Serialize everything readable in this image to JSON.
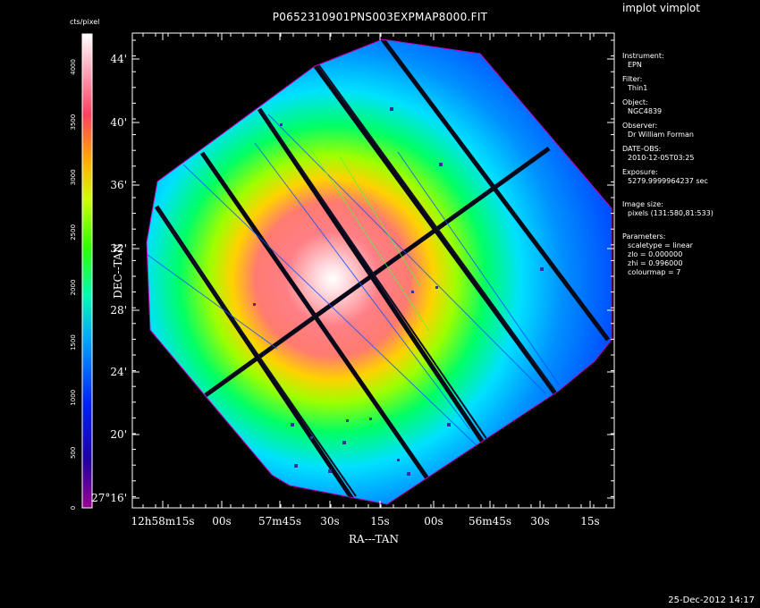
{
  "app_title": "implot vimplot",
  "plot_title": "P0652310901PNS003EXPMAP8000.FIT",
  "colorbar": {
    "unit_label": "cts/pixel",
    "tick_labels": [
      "0",
      "500",
      "1000",
      "1500",
      "2000",
      "2500",
      "3000",
      "3500",
      "4000"
    ],
    "colormap": "rainbow: magenta-blue-cyan-green-yellow-red-white"
  },
  "axes": {
    "x_label": "RA---TAN",
    "y_label": "DEC--TAN",
    "x_ticks": [
      "12h58m15s",
      "00s",
      "57m45s",
      "30s",
      "15s",
      "00s",
      "56m45s",
      "30s",
      "15s"
    ],
    "y_ticks": [
      "44'",
      "40'",
      "36'",
      "32'",
      "28'",
      "24'",
      "20'",
      "27°16'"
    ]
  },
  "info": {
    "instrument_label": "Instrument:",
    "instrument": "EPN",
    "filter_label": "Filter:",
    "filter": "Thin1",
    "object_label": "Object:",
    "object": "NGC4839",
    "observer_label": "Observer:",
    "observer": "Dr William Forman",
    "date_label": "DATE-OBS:",
    "date": "2010-12-05T03:25",
    "exposure_label": "Exposure:",
    "exposure": "5279.9999964237 sec",
    "image_size_label": "Image size:",
    "image_size": "pixels (131:580,81:533)",
    "parameters_label": "Parameters:",
    "scaletype": "scaletype = linear",
    "zlo": "zlo = 0.000000",
    "zhi": "zhi = 0.996000",
    "colourmap": "colourmap =   7"
  },
  "footer_timestamp": "25-Dec-2012 14:17"
}
